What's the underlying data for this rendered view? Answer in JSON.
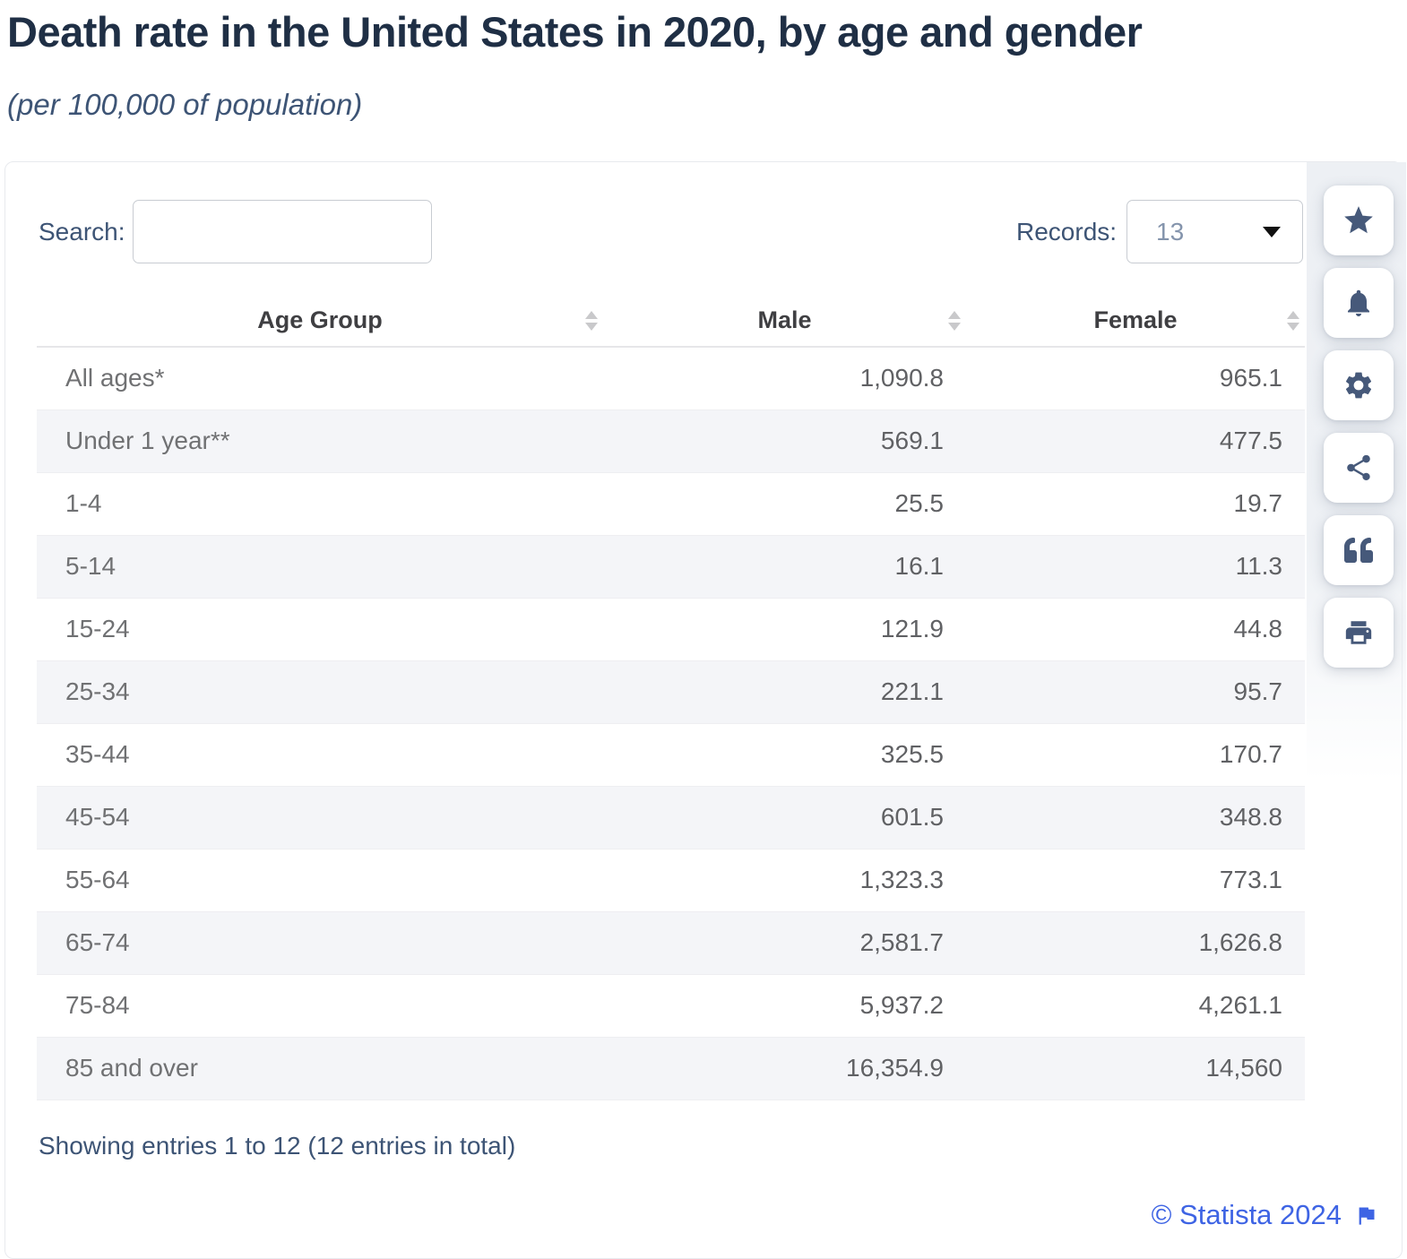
{
  "page": {
    "title": "Death rate in the United States in 2020, by age and gender",
    "subtitle": "(per 100,000 of population)"
  },
  "controls": {
    "search_label": "Search:",
    "search_value": "",
    "records_label": "Records:",
    "records_value": "13"
  },
  "table": {
    "columns": [
      "Age Group",
      "Male",
      "Female"
    ],
    "rows": [
      {
        "age_group": "All ages*",
        "male": "1,090.8",
        "female": "965.1"
      },
      {
        "age_group": "Under 1 year**",
        "male": "569.1",
        "female": "477.5"
      },
      {
        "age_group": "1-4",
        "male": "25.5",
        "female": "19.7"
      },
      {
        "age_group": "5-14",
        "male": "16.1",
        "female": "11.3"
      },
      {
        "age_group": "15-24",
        "male": "121.9",
        "female": "44.8"
      },
      {
        "age_group": "25-34",
        "male": "221.1",
        "female": "95.7"
      },
      {
        "age_group": "35-44",
        "male": "325.5",
        "female": "170.7"
      },
      {
        "age_group": "45-54",
        "male": "601.5",
        "female": "348.8"
      },
      {
        "age_group": "55-64",
        "male": "1,323.3",
        "female": "773.1"
      },
      {
        "age_group": "65-74",
        "male": "2,581.7",
        "female": "1,626.8"
      },
      {
        "age_group": "75-84",
        "male": "5,937.2",
        "female": "4,261.1"
      },
      {
        "age_group": "85 and over",
        "male": "16,354.9",
        "female": "14,560"
      }
    ]
  },
  "sidebar": {
    "buttons": [
      {
        "id": "favorite",
        "icon": "star-icon"
      },
      {
        "id": "notifications",
        "icon": "bell-icon"
      },
      {
        "id": "settings",
        "icon": "gear-icon"
      },
      {
        "id": "share",
        "icon": "share-icon"
      },
      {
        "id": "cite",
        "icon": "quote-icon"
      },
      {
        "id": "print",
        "icon": "printer-icon"
      }
    ]
  },
  "footer": {
    "showing_text": "Showing entries 1 to 12 (12 entries in total)",
    "credit": "© Statista 2024"
  },
  "colors": {
    "title": "#1f2f45",
    "slate_text": "#3d5475",
    "credit_blue": "#3e64e4",
    "icon_slate": "#46597a",
    "row_alt_bg": "#f4f5f8"
  }
}
